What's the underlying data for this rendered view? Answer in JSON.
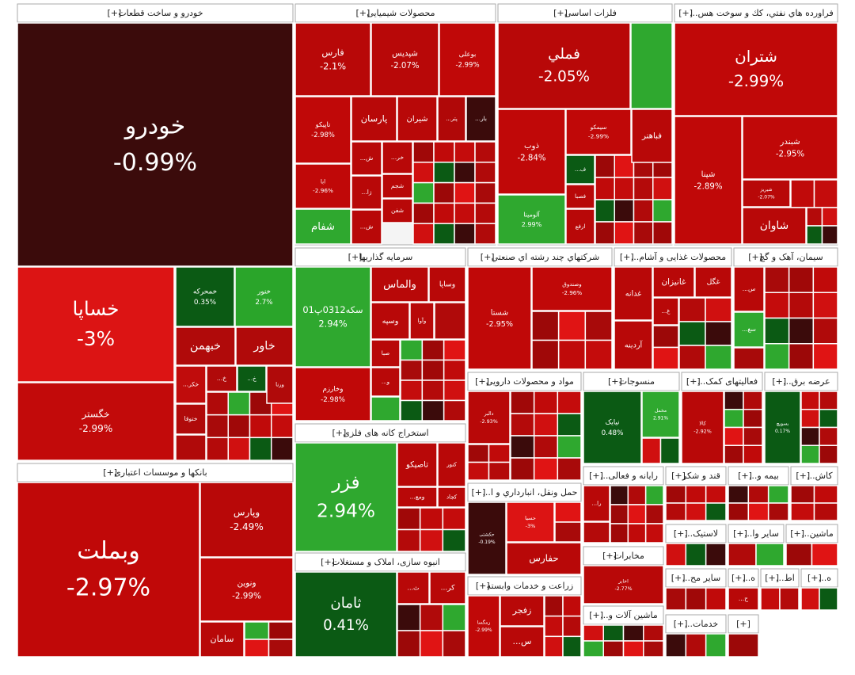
{
  "chart_data": {
    "type": "treemap",
    "expand_label": "[+]",
    "groups": [
      {
        "name": "خودرو و ساخت قطعات",
        "tiles": [
          {
            "label": "خودرو",
            "value": -0.99,
            "value_label": "-0.99%",
            "color": "#3b0b0b"
          },
          {
            "label": "خساپا",
            "value": -3,
            "value_label": "-3%",
            "color": "#dc1414"
          },
          {
            "label": "خگستر",
            "value": -2.99,
            "value_label": "-2.99%",
            "color": "#c20a0a"
          },
          {
            "label": "خمحرکه",
            "value": 0.35,
            "value_label": "0.35%",
            "color": "#0b5a14"
          },
          {
            "label": "خنور",
            "value": 2.7,
            "value_label": "2.7%",
            "color": "#2aa52a"
          },
          {
            "label": "خبهمن",
            "color": "#b00a0a"
          },
          {
            "label": "خاور",
            "color": "#b00a0a"
          },
          {
            "label": "خکر...",
            "color": "#c00c0c"
          },
          {
            "label": "خ...",
            "color": "#b00a0a"
          },
          {
            "label": "خ...",
            "color": "#0b5a14"
          },
          {
            "label": "ورنا",
            "color": "#b00a0a"
          },
          {
            "label": "ختوقا",
            "color": "#b00a0a"
          }
        ]
      },
      {
        "name": "بانکها و موسسات اعتباری",
        "tiles": [
          {
            "label": "وبملت",
            "value": -2.97,
            "value_label": "-2.97%",
            "color": "#c00808"
          },
          {
            "label": "وپارس",
            "value": -2.49,
            "value_label": "-2.49%",
            "color": "#b80808"
          },
          {
            "label": "ونوین",
            "value": -2.99,
            "value_label": "-2.99%",
            "color": "#c00808"
          },
          {
            "label": "سامان",
            "color": "#b80808"
          }
        ]
      },
      {
        "name": "محصولات شیمیایی",
        "tiles": [
          {
            "label": "فارس",
            "value": -2.1,
            "value_label": "-2.1%",
            "color": "#b80808"
          },
          {
            "label": "شپدیس",
            "value": -2.07,
            "value_label": "-2.07%",
            "color": "#b80808"
          },
          {
            "label": "بوعلی",
            "value": -2.99,
            "value_label": "-2.99%",
            "color": "#c00808"
          },
          {
            "label": "تاپیکو",
            "value": -2.98,
            "value_label": "-2.98%",
            "color": "#c00808"
          },
          {
            "label": "پارسان",
            "color": "#b80808"
          },
          {
            "label": "شیران",
            "color": "#b80808"
          },
          {
            "label": "پتر...",
            "color": "#b00808"
          },
          {
            "label": "بار...",
            "color": "#3b0b0b"
          },
          {
            "label": "ابا",
            "value": -2.96,
            "value_label": "-2.96%",
            "color": "#c00808"
          },
          {
            "label": "ش...",
            "color": "#b80808"
          },
          {
            "label": "خر...",
            "color": "#b80808"
          },
          {
            "label": "شجم",
            "color": "#b80808"
          },
          {
            "label": "زا...",
            "color": "#b80808"
          },
          {
            "label": "شفن",
            "color": "#b80808"
          },
          {
            "label": "ش...",
            "color": "#b80808"
          },
          {
            "label": "شفام",
            "color": "#2fa82f"
          }
        ]
      },
      {
        "name": "فلزات اساسی",
        "tiles": [
          {
            "label": "فملي",
            "value": -2.05,
            "value_label": "-2.05%",
            "color": "#b80808"
          },
          {
            "label": "ذوب",
            "value": -2.84,
            "value_label": "-2.84%",
            "color": "#c00808"
          },
          {
            "label": "سیمکو",
            "value": -2.99,
            "value_label": "-2.99%",
            "color": "#c00808"
          },
          {
            "label": "فباهنر",
            "color": "#b80808"
          },
          {
            "label": "ف...",
            "color": "#0b5a14"
          },
          {
            "label": "فصبا",
            "color": "#b80808"
          },
          {
            "label": "ارفع",
            "color": "#b80808"
          },
          {
            "label": "آلومینا",
            "value": 2.99,
            "value_label": "2.99%",
            "color": "#2fa82f"
          }
        ]
      },
      {
        "name": "فراورده هاي نفتي، كك و سوخت هس...",
        "tiles": [
          {
            "label": "شتران",
            "value": -2.99,
            "value_label": "-2.99%",
            "color": "#c00808"
          },
          {
            "label": "شپنا",
            "value": -2.89,
            "value_label": "-2.89%",
            "color": "#c00808"
          },
          {
            "label": "شبندر",
            "value": -2.95,
            "value_label": "-2.95%",
            "color": "#c00808"
          },
          {
            "label": "شاوان",
            "color": "#b80808"
          },
          {
            "label": "شیریز",
            "value": -2.07,
            "value_label": "-2.07%",
            "color": "#b80808"
          }
        ]
      },
      {
        "name": "سرمایه گذاریها",
        "tiles": [
          {
            "label": "سکه0312پ01",
            "value": 2.94,
            "value_label": "2.94%",
            "color": "#2fa82f"
          },
          {
            "label": "وخارزم",
            "value": -2.98,
            "value_label": "-2.98%",
            "color": "#c00808"
          },
          {
            "label": "والماس",
            "color": "#b80808"
          },
          {
            "label": "وساپا",
            "color": "#b80808"
          },
          {
            "label": "وسپه",
            "color": "#b80808"
          },
          {
            "label": "وآوا",
            "color": "#b80808"
          },
          {
            "label": "صبا",
            "color": "#b80808"
          },
          {
            "label": "و...",
            "color": "#b80808"
          }
        ]
      },
      {
        "name": "شركتهاي چند رشته اي صنعتي",
        "tiles": [
          {
            "label": "شستا",
            "value": -2.95,
            "value_label": "-2.95%",
            "color": "#c00808"
          },
          {
            "label": "وصندوق",
            "value": -2.96,
            "value_label": "-2.96%",
            "color": "#c00808"
          }
        ]
      },
      {
        "name": "محصولات غذایی و آشام...",
        "tiles": [
          {
            "label": "غدانه",
            "color": "#b80808"
          },
          {
            "label": "غانیزان",
            "color": "#b80808"
          },
          {
            "label": "غگل",
            "color": "#b80808"
          },
          {
            "label": "غ...",
            "color": "#b80808"
          },
          {
            "label": "آردینه",
            "color": "#b80808"
          }
        ]
      },
      {
        "name": "سیمان، آهک و گچ",
        "tiles": [
          {
            "label": "س...",
            "color": "#b80808"
          },
          {
            "label": "سغ...",
            "color": "#2fa82f"
          }
        ]
      },
      {
        "name": "استخراج کانه های فلزی",
        "tiles": [
          {
            "label": "فزر",
            "value": 2.94,
            "value_label": "2.94%",
            "color": "#2fa82f"
          },
          {
            "label": "تاصیکو",
            "color": "#b80808"
          },
          {
            "label": "کنور",
            "color": "#b80808"
          },
          {
            "label": "ومع...",
            "color": "#b80808"
          },
          {
            "label": "کچاد",
            "color": "#b80808"
          }
        ]
      },
      {
        "name": "انبوه سازی، املاک و مستغلات",
        "tiles": [
          {
            "label": "ثامان",
            "value": 0.41,
            "value_label": "0.41%",
            "color": "#0b5a14"
          },
          {
            "label": "ث...",
            "color": "#b80808"
          },
          {
            "label": "کر...",
            "color": "#b80808"
          }
        ]
      },
      {
        "name": "مواد و محصولات دارویی",
        "tiles": [
          {
            "label": "دالبر",
            "value": -2.93,
            "value_label": "-2.93%",
            "color": "#b80808"
          }
        ]
      },
      {
        "name": "منسوجات",
        "tiles": [
          {
            "label": "نیایک",
            "value": 0.48,
            "value_label": "0.48%",
            "color": "#0b5a14"
          },
          {
            "label": "مخمل",
            "value": 2.91,
            "value_label": "2.91%",
            "color": "#2fa82f"
          }
        ]
      },
      {
        "name": "فعالیتهای کمک...",
        "tiles": [
          {
            "label": "کالا",
            "value": -2.92,
            "value_label": "-2.92%",
            "color": "#b80808"
          }
        ]
      },
      {
        "name": "عرضه برق...",
        "tiles": [
          {
            "label": "بسویچ",
            "value": 0.17,
            "value_label": "0.17%",
            "color": "#0b5a14"
          }
        ]
      },
      {
        "name": "حمل ونقل، انبارداري و ا...",
        "tiles": [
          {
            "label": "حکشتی",
            "value": -0.19,
            "value_label": "-0.19%",
            "color": "#3b0b0b"
          },
          {
            "label": "حسیا",
            "value": -3,
            "value_label": "-3%",
            "color": "#dc1414"
          },
          {
            "label": "حفارس",
            "color": "#b80808"
          }
        ]
      },
      {
        "name": "زراعت و خدمات وابسته",
        "tiles": [
          {
            "label": "زمگسا",
            "value": -2.99,
            "value_label": "-2.99%",
            "color": "#c00808"
          },
          {
            "label": "زفجر",
            "color": "#b80808"
          },
          {
            "label": "س...",
            "color": "#b80808"
          }
        ]
      },
      {
        "name": "رایانه و فعالی...",
        "tiles": [
          {
            "label": "را...",
            "color": "#b80808"
          }
        ]
      },
      {
        "name": "مخابرات",
        "tiles": [
          {
            "label": "اخابر",
            "value": -2.77,
            "value_label": "-2.77%",
            "color": "#b80808"
          }
        ]
      },
      {
        "name": "ماشین آلات و...",
        "tiles": []
      },
      {
        "name": "قند و شکر",
        "tiles": []
      },
      {
        "name": "بیمه و...",
        "tiles": []
      },
      {
        "name": "کاش...",
        "tiles": []
      },
      {
        "name": "لاستیک...",
        "tiles": []
      },
      {
        "name": "سایر وا...",
        "tiles": []
      },
      {
        "name": "ماشین...",
        "tiles": []
      },
      {
        "name": "سایر مح...",
        "tiles": []
      },
      {
        "name": "ه...",
        "tiles": [
          {
            "label": "ح...",
            "color": "#b80808"
          }
        ]
      },
      {
        "name": "اط...",
        "tiles": []
      },
      {
        "name": "ه...",
        "tiles": []
      },
      {
        "name": "خدمات...",
        "tiles": []
      },
      {
        "tiles": []
      }
    ]
  }
}
